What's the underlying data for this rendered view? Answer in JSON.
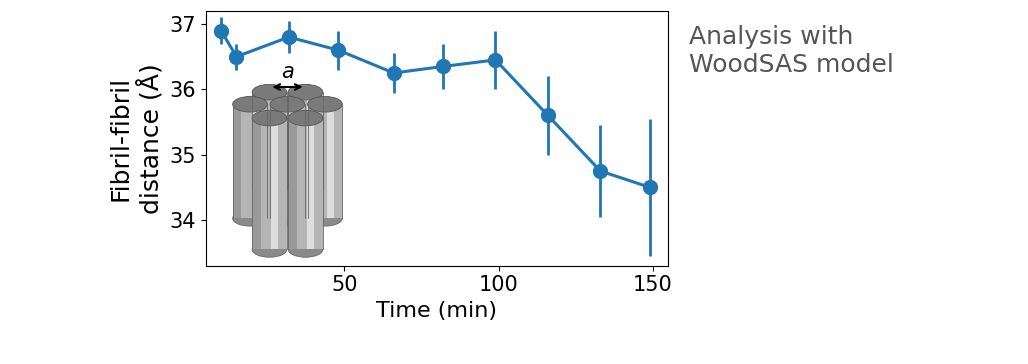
{
  "chart_data": {
    "type": "line",
    "x_label": "Time (min)",
    "y_label": "Fibril-fibril\ndistance (Å)",
    "annotation": "Analysis with\nWoodSAS model",
    "inset_label": "a",
    "x": [
      10,
      15,
      32,
      48,
      66,
      82,
      99,
      116,
      133,
      149
    ],
    "values": [
      36.9,
      36.5,
      36.8,
      36.6,
      36.25,
      36.35,
      36.45,
      35.6,
      34.75,
      34.5
    ],
    "errors": [
      0.2,
      0.2,
      0.25,
      0.3,
      0.3,
      0.35,
      0.45,
      0.6,
      0.7,
      1.05
    ],
    "color": "#1f77b4",
    "marker": "o",
    "line_style": "solid",
    "xlim": [
      5,
      155
    ],
    "xticks": [
      50,
      100,
      150
    ],
    "ylim": [
      33.3,
      37.2
    ],
    "yticks": [
      34,
      35,
      36,
      37
    ],
    "grid": false
  }
}
